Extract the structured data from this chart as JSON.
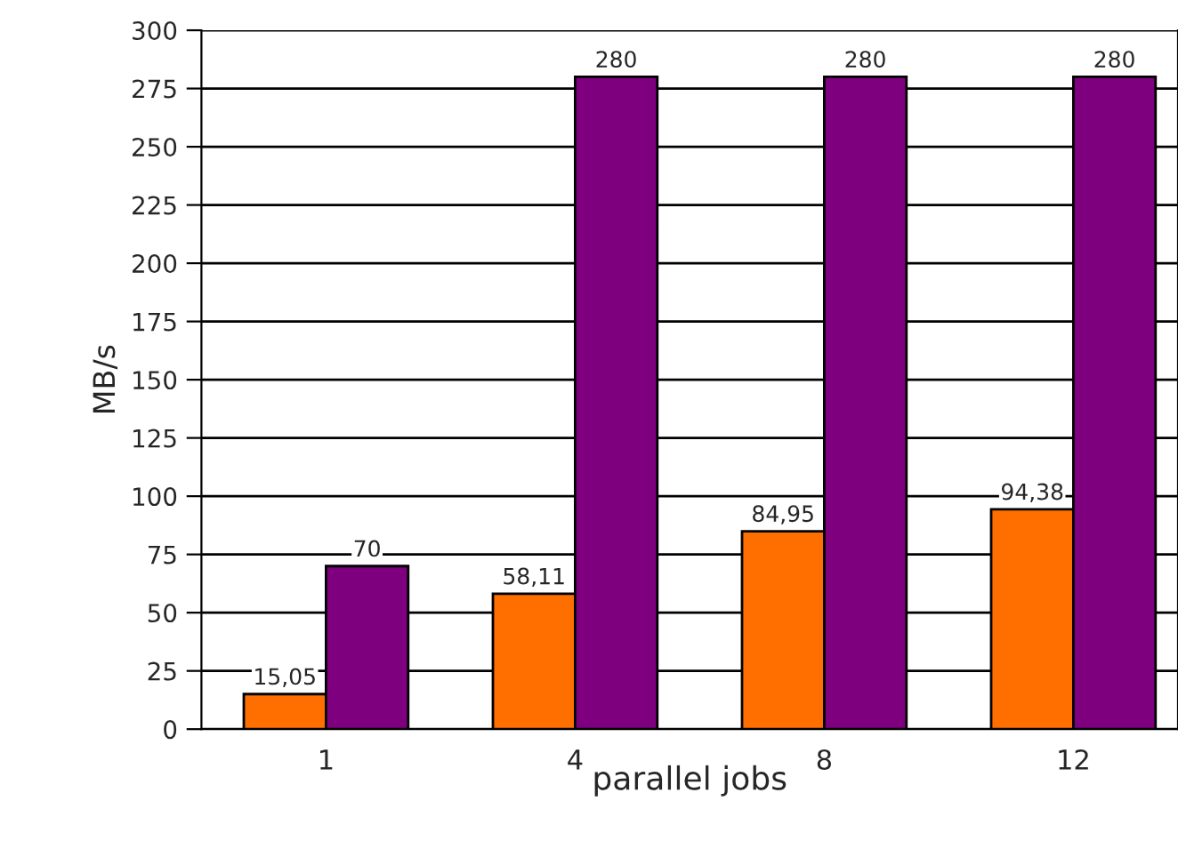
{
  "chart_data": {
    "type": "bar",
    "xlabel": "parallel jobs",
    "ylabel": "MB/s",
    "categories": [
      "1",
      "4",
      "8",
      "12"
    ],
    "series": [
      {
        "color": "#ff6f00",
        "values": [
          15.05,
          58.11,
          84.95,
          94.38
        ],
        "value_labels": [
          "15,05",
          "58,11",
          "84,95",
          "94,38"
        ]
      },
      {
        "color": "#7f007f",
        "values": [
          70,
          280,
          280,
          280
        ],
        "value_labels": [
          "70",
          "280",
          "280",
          "280"
        ]
      }
    ],
    "ylim": [
      0,
      300
    ],
    "yticks": [
      0,
      25,
      50,
      75,
      100,
      125,
      150,
      175,
      200,
      225,
      250,
      275,
      300
    ],
    "grid": "y",
    "legend": false
  }
}
